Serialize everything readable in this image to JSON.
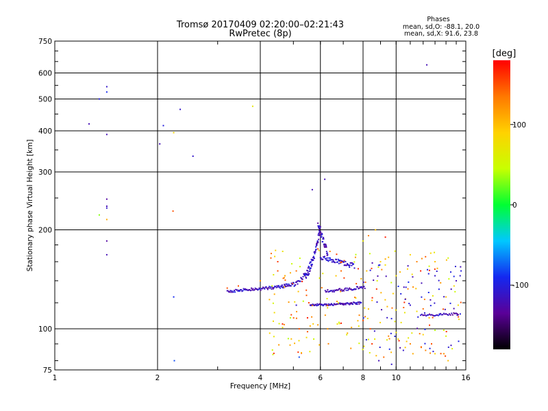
{
  "chart_data": {
    "type": "scatter",
    "title": "Tromsø 20170409 02:20:00–02:21:43",
    "subtitle": "RwPretec (8p)",
    "xlabel": "Frequency [MHz]",
    "ylabel": "Stationary phase Virtual Height [km]",
    "x_scale": "log",
    "y_scale": "log",
    "xlim": [
      1,
      16
    ],
    "ylim": [
      75,
      750
    ],
    "x_ticks": [
      1,
      2,
      4,
      6,
      8,
      10,
      16
    ],
    "x_tick_labels": [
      "1",
      "2",
      "4",
      "6",
      "8",
      "10",
      "16"
    ],
    "y_ticks": [
      75,
      100,
      200,
      300,
      400,
      500,
      600,
      750
    ],
    "y_tick_labels": [
      "75",
      "100",
      "200",
      "300",
      "400",
      "500",
      "600",
      "750"
    ],
    "grid": true,
    "phase_info": {
      "heading": "Phases",
      "line_o": "mean, sd,O: -88.1, 20.0",
      "line_x": "mean, sd,X:  91.6, 23.8"
    },
    "colorbar": {
      "unit": "[deg]",
      "ticks": [
        -100,
        0,
        100
      ],
      "tick_labels": [
        "-100",
        "0",
        "100"
      ],
      "range": [
        -180,
        180
      ],
      "colors": [
        "#000000",
        "#5a0098",
        "#1428f0",
        "#00c8ff",
        "#00ff32",
        "#c8ff00",
        "#ffd200",
        "#ff7800",
        "#ff0000"
      ]
    },
    "series": [
      {
        "values": [
          [
            1.26,
            420,
            -120
          ],
          [
            1.35,
            500,
            -100
          ],
          [
            1.42,
            545,
            -110
          ],
          [
            1.42,
            525,
            -90
          ],
          [
            1.42,
            390,
            -120
          ],
          [
            1.42,
            248,
            -130
          ],
          [
            1.42,
            236,
            -120
          ],
          [
            1.42,
            233,
            -110
          ],
          [
            1.35,
            222,
            30
          ],
          [
            1.42,
            215,
            110
          ],
          [
            1.42,
            185,
            -130
          ],
          [
            1.42,
            168,
            -120
          ],
          [
            2.08,
            415,
            -100
          ],
          [
            2.03,
            365,
            -120
          ],
          [
            2.23,
            395,
            90
          ],
          [
            2.33,
            465,
            -110
          ],
          [
            2.22,
            228,
            150
          ],
          [
            2.54,
            335,
            -110
          ],
          [
            2.23,
            125,
            -90
          ],
          [
            2.24,
            80,
            -80
          ],
          [
            3.8,
            475,
            70
          ],
          [
            12.3,
            635,
            -120
          ],
          [
            5.68,
            265,
            -120
          ],
          [
            6.18,
            285,
            -120
          ],
          [
            5.2,
            82,
            -80
          ],
          [
            6.55,
            160,
            -110
          ],
          [
            6.8,
            158,
            -105
          ],
          [
            7.05,
            156,
            -110
          ],
          [
            7.3,
            154,
            -100
          ],
          [
            7.55,
            153,
            -110
          ],
          [
            3.45,
            135,
            150
          ],
          [
            3.2,
            133,
            150
          ],
          [
            5.5,
            108,
            170
          ],
          [
            6.2,
            110,
            120
          ],
          [
            8.9,
            80,
            -120
          ],
          [
            9.7,
            78,
            -110
          ],
          [
            13.0,
            84,
            90
          ],
          [
            14.6,
            87,
            60
          ],
          [
            9.0,
            160,
            90
          ],
          [
            9.5,
            165,
            100
          ],
          [
            9.3,
            163,
            110
          ],
          [
            10.0,
            145,
            80
          ],
          [
            8.2,
            150,
            100
          ],
          [
            8.8,
            140,
            60
          ],
          [
            8.5,
            122,
            100
          ],
          [
            9.8,
            128,
            90
          ],
          [
            10.6,
            112,
            70
          ],
          [
            11.0,
            118,
            -110
          ],
          [
            11.5,
            113,
            80
          ],
          [
            12.0,
            115,
            140
          ],
          [
            12.5,
            108,
            100
          ],
          [
            13.0,
            145,
            -110
          ],
          [
            13.5,
            138,
            120
          ],
          [
            14.0,
            125,
            100
          ],
          [
            14.5,
            132,
            -120
          ],
          [
            15.0,
            140,
            -120
          ],
          [
            15.2,
            118,
            80
          ],
          [
            15.4,
            145,
            -110
          ],
          [
            15.5,
            150,
            -100
          ],
          [
            15.1,
            110,
            -110
          ],
          [
            14.0,
            95,
            60
          ],
          [
            13.0,
            99,
            40
          ],
          [
            12.0,
            96,
            90
          ],
          [
            11.0,
            90,
            130
          ],
          [
            10.5,
            86,
            -110
          ],
          [
            8.4,
            100,
            150
          ],
          [
            7.4,
            101,
            110
          ],
          [
            6.9,
            104,
            170
          ],
          [
            7.8,
            110,
            130
          ],
          [
            8.0,
            106,
            150
          ],
          [
            4.5,
            150,
            150
          ],
          [
            4.7,
            143,
            120
          ],
          [
            4.9,
            148,
            110
          ],
          [
            5.1,
            150,
            140
          ],
          [
            5.4,
            145,
            130
          ],
          [
            5.1,
            118,
            -110
          ],
          [
            4.4,
            112,
            80
          ],
          [
            4.7,
            103,
            130
          ],
          [
            5.2,
            100,
            150
          ],
          [
            5.6,
            102,
            110
          ],
          [
            8.0,
            185,
            70
          ],
          [
            8.3,
            192,
            130
          ],
          [
            8.7,
            200,
            100
          ],
          [
            9.3,
            190,
            170
          ],
          [
            11.0,
            168,
            90
          ],
          [
            11.5,
            160,
            130
          ],
          [
            10.8,
            152,
            90
          ],
          [
            11.8,
            150,
            170
          ],
          [
            12.5,
            155,
            50
          ],
          [
            13.0,
            160,
            100
          ],
          [
            4.0,
            140,
            120
          ],
          [
            4.5,
            160,
            160
          ],
          [
            4.9,
            108,
            40
          ],
          [
            5.5,
            98,
            150
          ],
          [
            6.3,
            100,
            120
          ],
          [
            7.2,
            97,
            110
          ],
          [
            8.5,
            90,
            160
          ],
          [
            9.5,
            95,
            130
          ],
          [
            10.2,
            92,
            170
          ],
          [
            12.7,
            90,
            150
          ],
          [
            13.8,
            84,
            120
          ],
          [
            14.2,
            80,
            100
          ],
          [
            9.2,
            82,
            140
          ],
          [
            11.2,
            84,
            110
          ],
          [
            12.2,
            86,
            130
          ],
          [
            5.9,
            175,
            150
          ],
          [
            6.4,
            172,
            130
          ],
          [
            7.6,
            165,
            120
          ],
          [
            6.9,
            150,
            140
          ],
          [
            7.9,
            142,
            110
          ]
        ]
      }
    ]
  }
}
